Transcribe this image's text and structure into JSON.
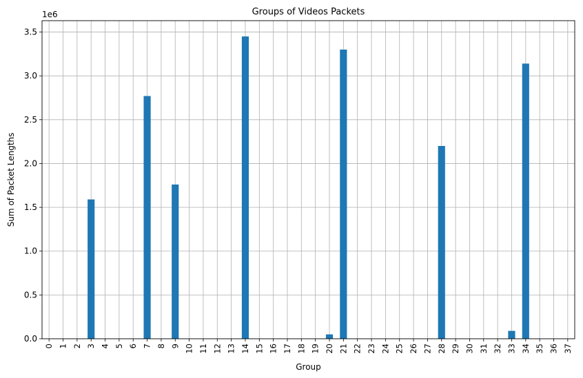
{
  "chart_data": {
    "type": "bar",
    "title": "Groups of Videos Packets",
    "xlabel": "Group",
    "ylabel": "Sum of Packet Lengths",
    "y_scale_label": "1e6",
    "ylim": [
      0,
      3.63
    ],
    "yticks": [
      "0.0",
      "0.5",
      "1.0",
      "1.5",
      "2.0",
      "2.5",
      "3.0",
      "3.5"
    ],
    "grid": true,
    "bar_color": "#1f77b4",
    "categories": [
      "0",
      "1",
      "2",
      "3",
      "4",
      "5",
      "6",
      "7",
      "8",
      "9",
      "10",
      "11",
      "12",
      "13",
      "14",
      "15",
      "16",
      "17",
      "18",
      "19",
      "20",
      "21",
      "22",
      "23",
      "24",
      "25",
      "26",
      "27",
      "28",
      "29",
      "30",
      "31",
      "32",
      "33",
      "34",
      "35",
      "36",
      "37"
    ],
    "values": [
      0,
      0,
      0,
      1.59,
      0,
      0,
      0,
      2.77,
      0,
      1.76,
      0,
      0,
      0,
      0,
      3.45,
      0,
      0,
      0,
      0,
      0,
      0.05,
      3.3,
      0,
      0,
      0,
      0,
      0,
      0,
      2.2,
      0,
      0,
      0,
      0,
      0.09,
      3.14,
      0,
      0,
      0
    ]
  }
}
